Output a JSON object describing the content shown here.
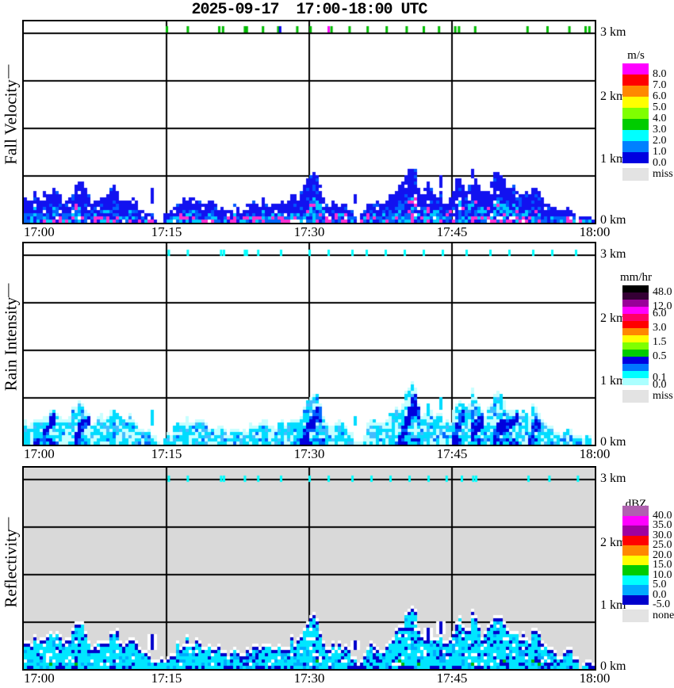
{
  "title": "2025-09-17  17:00-18:00 UTC",
  "axis_bar": "|",
  "x_axis": {
    "labels": [
      "17:00",
      "17:15",
      "17:30",
      "17:45",
      "18:00"
    ]
  },
  "y_axis": {
    "labels": [
      "0 km",
      "1 km",
      "2 km",
      "3 km"
    ]
  },
  "panels": [
    {
      "id": "fall-velocity",
      "label": "Fall Velocity",
      "bg": "#ffffff",
      "colorbar": {
        "title": "m/s",
        "blocks": [
          {
            "color": "#ff00ff",
            "label": "8.0"
          },
          {
            "color": "#ff0000",
            "label": "7.0"
          },
          {
            "color": "#ff8800",
            "label": "6.0"
          },
          {
            "color": "#ffff00",
            "label": "5.0"
          },
          {
            "color": "#7fff00",
            "label": "4.0"
          },
          {
            "color": "#00cc00",
            "label": "3.0"
          },
          {
            "color": "#00ffff",
            "label": "2.0"
          },
          {
            "color": "#0080ff",
            "label": "1.0"
          },
          {
            "color": "#0000e0",
            "label": "0.0"
          }
        ],
        "miss_label": "miss",
        "miss_color": "#e3e3e3"
      },
      "marker": {
        "color": "#00bb00",
        "minutes": [
          15.0,
          17.2,
          20.5,
          20.9,
          23.2,
          23.4,
          25.1,
          26.7,
          28.7,
          30.1,
          32.3,
          34.2,
          36.1,
          38.1,
          40.2,
          42.0,
          43.6,
          45.3,
          45.7,
          47.4,
          52.9,
          55.0,
          57.3,
          59.0,
          59.4
        ],
        "extra": [
          {
            "color": "#0000ee",
            "minutes": [
              26.9
            ]
          },
          {
            "color": "#ff00ff",
            "minutes": [
              32.0
            ]
          }
        ]
      },
      "palette": {
        "body": "#1212f0",
        "accent": "#0057ff",
        "cyan": "#00ccff",
        "dodger": "#0066ff",
        "magenta": "#ff2fd2"
      }
    },
    {
      "id": "rain-intensity",
      "label": "Rain Intensity",
      "bg": "#ffffff",
      "colorbar": {
        "title": "mm/hr",
        "blocks": [
          {
            "color": "#000000",
            "label": "48.0"
          },
          {
            "color": "#350035",
            "label": ""
          },
          {
            "color": "#990099",
            "label": "12.0"
          },
          {
            "color": "#ff00ff",
            "label": "6.0"
          },
          {
            "color": "#ff0066",
            "label": ""
          },
          {
            "color": "#ff0000",
            "label": "3.0"
          },
          {
            "color": "#ff8800",
            "label": ""
          },
          {
            "color": "#ffff00",
            "label": "1.5"
          },
          {
            "color": "#7fff00",
            "label": ""
          },
          {
            "color": "#00cc00",
            "label": "0.5"
          },
          {
            "color": "#0000e0",
            "label": ""
          },
          {
            "color": "#0077ff",
            "label": ""
          },
          {
            "color": "#00ffff",
            "label": "0.1"
          },
          {
            "color": "#aaffff",
            "label": "0.0"
          }
        ],
        "miss_label": "miss",
        "miss_color": "#e3e3e3"
      },
      "marker": {
        "color": "#00ffff",
        "minutes": [
          15.2,
          17.2,
          20.7,
          21.0,
          23.2,
          23.4,
          24.6,
          27.0,
          30.0,
          32.0,
          34.5,
          36.0,
          38.0,
          40.0,
          42.0,
          44.0,
          46.5,
          49.0,
          51.0,
          53.5,
          55.5,
          58.0
        ],
        "extra": []
      },
      "palette": {
        "pale": "#c6ffff",
        "cyan": "#00dcff",
        "mid": "#44bbff",
        "deep": "#0066ff",
        "dark": "#0000dd"
      }
    },
    {
      "id": "reflectivity",
      "label": "Reflectivity",
      "bg": "#d9d9d9",
      "colorbar": {
        "title": "dBZ",
        "blocks": [
          {
            "color": "#b060b0",
            "label": "40.0"
          },
          {
            "color": "#ff00ff",
            "label": "35.0"
          },
          {
            "color": "#a000a0",
            "label": "30.0"
          },
          {
            "color": "#ff0000",
            "label": "25.0"
          },
          {
            "color": "#ff8800",
            "label": "20.0"
          },
          {
            "color": "#ffff00",
            "label": "15.0"
          },
          {
            "color": "#00cc00",
            "label": "10.0"
          },
          {
            "color": "#00ffff",
            "label": "5.0"
          },
          {
            "color": "#00aaff",
            "label": "0.0"
          },
          {
            "color": "#0000cc",
            "label": "-5.0"
          }
        ],
        "miss_label": "none",
        "miss_color": "#e3e3e3"
      },
      "marker": {
        "color": "#00ffff",
        "minutes": [
          15.2,
          17.2,
          20.7,
          21.0,
          23.2,
          24.6,
          27.0,
          30.0,
          32.0,
          34.5,
          36.5,
          38.5,
          40.5,
          42.5,
          44.4,
          46.0,
          47.2,
          47.5,
          53.0,
          55.2,
          58.2
        ],
        "extra": []
      },
      "palette": {
        "cyan": "#00e6ff",
        "azure": "#00aaff",
        "dark": "#0000cc",
        "halo": "#ffffff",
        "speck": "#00bb00"
      }
    }
  ],
  "chart_data": {
    "type": "heatmap",
    "title": "2025-09-17  17:00-18:00 UTC",
    "x_labels_utc": [
      "17:00",
      "17:15",
      "17:30",
      "17:45",
      "18:00"
    ],
    "x_minutes_range": [
      0,
      60
    ],
    "height_km_range": [
      0,
      3.2
    ],
    "height_tick_labels_km": [
      0,
      1,
      2,
      3
    ],
    "time_step_min": 0.5,
    "panel_quantities": [
      "Fall Velocity (m/s)",
      "Rain Intensity (mm/hr)",
      "Reflectivity (dBZ)"
    ],
    "echo_top_km": [
      0.38,
      0.32,
      0.45,
      0.4,
      0.46,
      0.42,
      0.55,
      0.45,
      0.34,
      0.38,
      0.55,
      0.65,
      0.68,
      0.5,
      0.32,
      0.35,
      0.44,
      0.36,
      0.52,
      0.6,
      0.4,
      0.34,
      0.46,
      0.4,
      0.26,
      0.22,
      0.2,
      0.1,
      0.06,
      0.08,
      0.16,
      0.2,
      0.36,
      0.3,
      0.42,
      0.36,
      0.38,
      0.33,
      0.31,
      0.28,
      0.3,
      0.26,
      0.23,
      0.2,
      0.26,
      0.22,
      0.21,
      0.26,
      0.3,
      0.28,
      0.36,
      0.31,
      0.28,
      0.25,
      0.36,
      0.31,
      0.43,
      0.38,
      0.46,
      0.62,
      0.74,
      0.76,
      0.6,
      0.34,
      0.3,
      0.33,
      0.36,
      0.3,
      0.25,
      0.14,
      0.08,
      0.12,
      0.3,
      0.36,
      0.31,
      0.28,
      0.36,
      0.46,
      0.52,
      0.62,
      0.78,
      0.94,
      0.86,
      0.44,
      0.5,
      0.55,
      0.42,
      0.46,
      0.35,
      0.3,
      0.56,
      0.76,
      0.62,
      0.5,
      0.88,
      0.7,
      0.46,
      0.52,
      0.66,
      0.82,
      0.76,
      0.6,
      0.52,
      0.56,
      0.46,
      0.5,
      0.42,
      0.64,
      0.52,
      0.36,
      0.3,
      0.26,
      0.2,
      0.16,
      0.28,
      0.2,
      0.12,
      0.06,
      0.13,
      0.05
    ],
    "floaters": [
      [
        13.2,
        0.28,
        0.52
      ],
      [
        34.6,
        0.3,
        0.42
      ],
      [
        42.3,
        0.46,
        0.6
      ],
      [
        43.7,
        0.55,
        0.68
      ]
    ],
    "cores": [
      [
        1.0,
        3.2
      ],
      [
        5.2,
        6.8
      ],
      [
        29.0,
        31.4
      ],
      [
        39.2,
        41.4
      ],
      [
        44.8,
        46.3
      ],
      [
        46.8,
        48.3
      ],
      [
        49.2,
        51.8
      ],
      [
        52.8,
        54.3
      ]
    ]
  }
}
